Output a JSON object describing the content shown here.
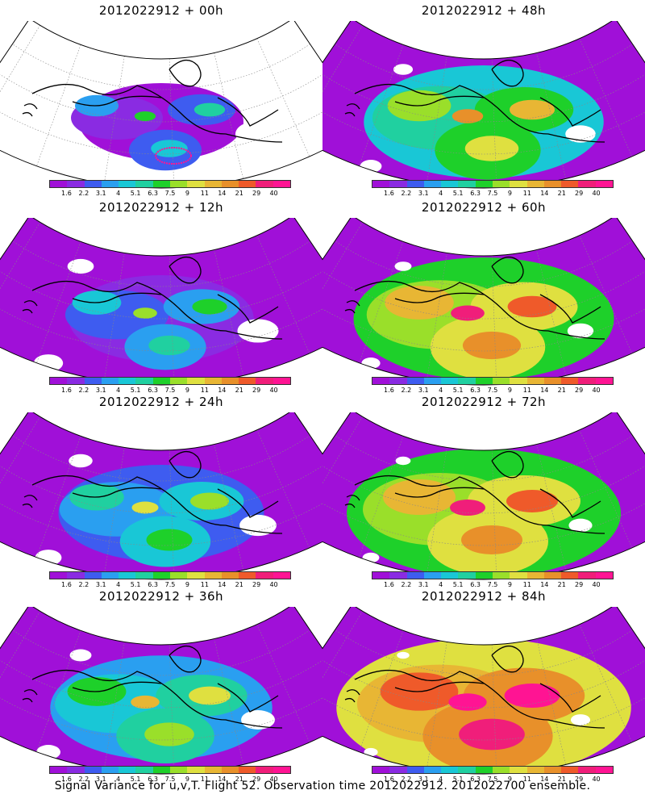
{
  "panels": [
    {
      "title": "2012022912 + 00h",
      "intensity": 0.0
    },
    {
      "title": "2012022912 + 48h",
      "intensity": 0.55
    },
    {
      "title": "2012022912 + 12h",
      "intensity": 0.15
    },
    {
      "title": "2012022912 + 60h",
      "intensity": 0.7
    },
    {
      "title": "2012022912 + 24h",
      "intensity": 0.3
    },
    {
      "title": "2012022912 + 72h",
      "intensity": 0.8
    },
    {
      "title": "2012022912 + 36h",
      "intensity": 0.42
    },
    {
      "title": "2012022912 + 84h",
      "intensity": 0.95
    }
  ],
  "colorbar": {
    "labels": [
      "1.6",
      "2.2",
      "3.1",
      "4",
      "5.1",
      "6.3",
      "7.5",
      "9",
      "11",
      "14",
      "21",
      "29",
      "40"
    ],
    "colors": [
      "#a010d8",
      "#8a2be2",
      "#3e5cf0",
      "#2a9ff0",
      "#19c7d6",
      "#20d0a0",
      "#1ed02a",
      "#9adf2a",
      "#dfe040",
      "#e8b634",
      "#e8902a",
      "#ef5a2a",
      "#f01e7a",
      "#ff1493"
    ]
  },
  "footer": "Signal Variance for u,v,T. Flight 52. Observation time 2012022912. 2012022700 ensemble."
}
